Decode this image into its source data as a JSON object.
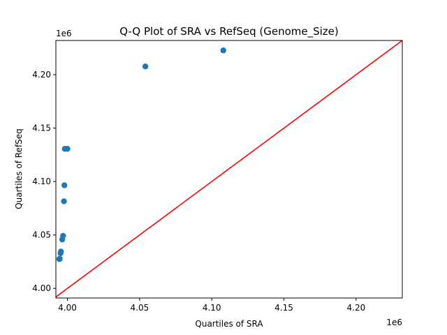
{
  "chart_data": {
    "type": "scatter",
    "title": "Q-Q Plot of SRA vs RefSeq (Genome_Size)",
    "xlabel": "Quartiles of SRA",
    "ylabel": "Quartiles of RefSeq",
    "x_offset_label": "1e6",
    "y_offset_label": "1e6",
    "xlim": [
      3992000,
      4232000
    ],
    "ylim": [
      3991000,
      4232000
    ],
    "x_ticks": [
      4000000,
      4050000,
      4100000,
      4150000,
      4200000
    ],
    "x_tick_labels": [
      "4.00",
      "4.05",
      "4.10",
      "4.15",
      "4.20"
    ],
    "y_ticks": [
      4000000,
      4050000,
      4100000,
      4150000,
      4200000
    ],
    "y_tick_labels": [
      "4.00",
      "4.05",
      "4.10",
      "4.15",
      "4.20"
    ],
    "grid": false,
    "point_color": "#1f77b4",
    "line_color": "#ff0000",
    "reference_line": {
      "type": "y=x"
    },
    "points": [
      {
        "x": 3994400,
        "y": 4027500
      },
      {
        "x": 3994700,
        "y": 4027700
      },
      {
        "x": 3995200,
        "y": 4032900
      },
      {
        "x": 3995500,
        "y": 4034500
      },
      {
        "x": 3996400,
        "y": 4045800
      },
      {
        "x": 3997000,
        "y": 4049200
      },
      {
        "x": 3997600,
        "y": 4081500
      },
      {
        "x": 3997900,
        "y": 4096500
      },
      {
        "x": 3998200,
        "y": 4130600
      },
      {
        "x": 4000000,
        "y": 4130600
      },
      {
        "x": 4054000,
        "y": 4207700
      },
      {
        "x": 4108000,
        "y": 4222700
      }
    ]
  }
}
